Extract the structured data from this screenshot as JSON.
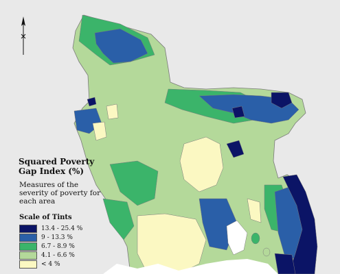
{
  "legend": {
    "title": "Squared Poverty Gap Index (%)",
    "description": "Measures of the severity of poverty for each area",
    "scale_title": "Scale of Tints",
    "items": [
      {
        "label": "13.4 - 25.4 %",
        "color": "#0b1466"
      },
      {
        "label": "9 - 13.3 %",
        "color": "#2a5fa8"
      },
      {
        "label": "6.7 - 8.9 %",
        "color": "#3bb46a"
      },
      {
        "label": "4.1 - 6.6 %",
        "color": "#b4d99a"
      },
      {
        "label": "< 4 %",
        "color": "#fbf8c2"
      }
    ]
  },
  "map": {
    "background_color": "#e9e9e9",
    "water_color": "#ffffff",
    "border_color": "#7a7a7a",
    "north_arrow_icon": "north-arrow-icon"
  }
}
